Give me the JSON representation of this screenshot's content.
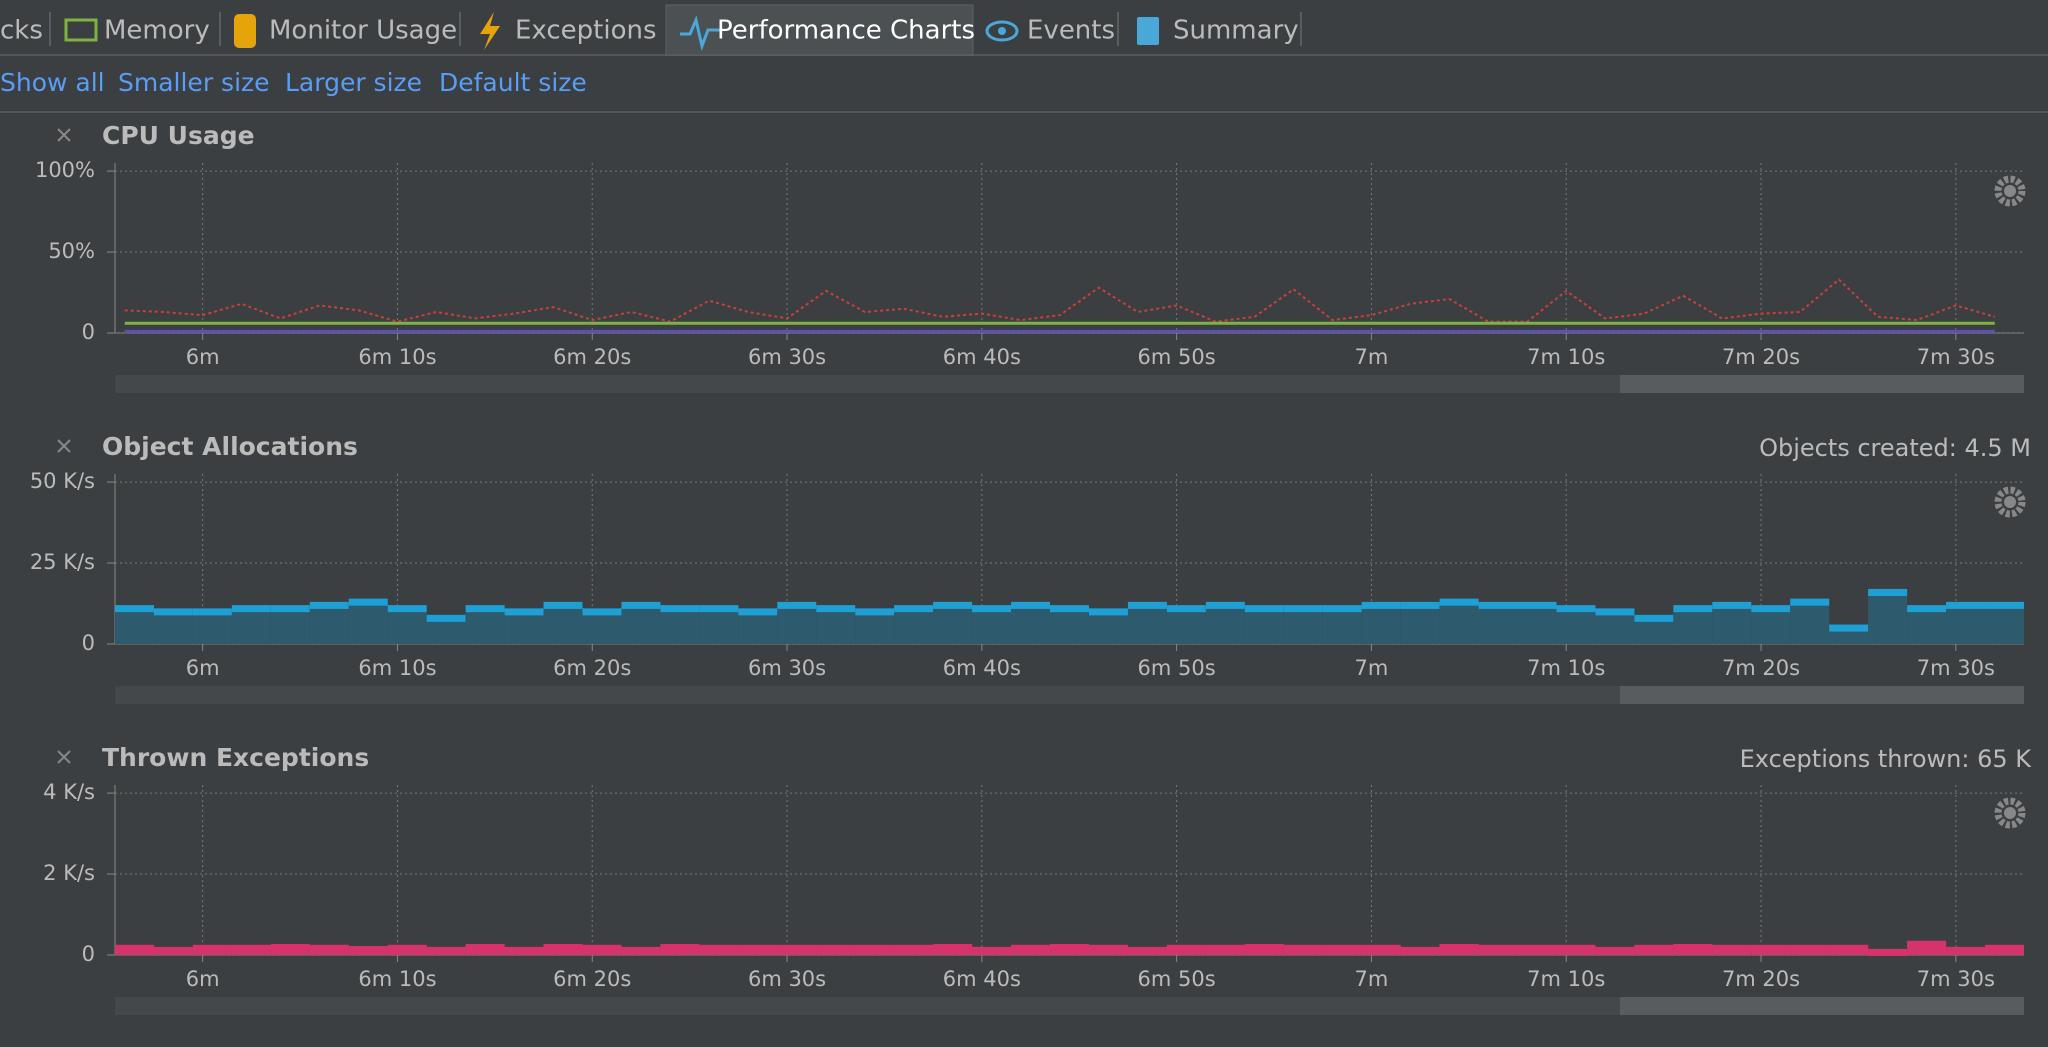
{
  "tabs": [
    "cks",
    "Memory",
    "Monitor Usage",
    "Exceptions",
    "Performance Charts",
    "Events",
    "Summary"
  ],
  "links": [
    "Show all",
    "Smaller size",
    "Larger size",
    "Default size"
  ],
  "chart_data": [
    {
      "type": "line",
      "title": "CPU Usage",
      "x": [
        356,
        358,
        360,
        362,
        364,
        366,
        368,
        370,
        372,
        374,
        376,
        378,
        380,
        382,
        384,
        386,
        388,
        390,
        392,
        394,
        396,
        398,
        400,
        402,
        404,
        406,
        408,
        410,
        412,
        414,
        416,
        418,
        420,
        422,
        424,
        426,
        428,
        430,
        432,
        434,
        436,
        438,
        440,
        442,
        444,
        446,
        448,
        450,
        452
      ],
      "series": [
        {
          "color": "#c9403a",
          "style": "dotted",
          "values": [
            14,
            13,
            11,
            18,
            9,
            17,
            14,
            7,
            13,
            9,
            12,
            16,
            8,
            13,
            7,
            20,
            13,
            9,
            26,
            13,
            15,
            10,
            12,
            8,
            11,
            28,
            13,
            17,
            7,
            10,
            27,
            8,
            11,
            18,
            21,
            7,
            7,
            26,
            9,
            12,
            23,
            9,
            12,
            13,
            33,
            10,
            8,
            17,
            10
          ]
        },
        {
          "color": "#7cb342",
          "style": "solid",
          "values": [
            6,
            6,
            6,
            6,
            6,
            6,
            6,
            6,
            6,
            6,
            6,
            6,
            6,
            6,
            6,
            6,
            6,
            6,
            6,
            6,
            6,
            6,
            6,
            6,
            6,
            6,
            6,
            6,
            6,
            6,
            6,
            6,
            6,
            6,
            6,
            6,
            6,
            6,
            6,
            6,
            6,
            6,
            6,
            6,
            6,
            6,
            6,
            6,
            6
          ]
        },
        {
          "color": "#5b4fb5",
          "style": "solid",
          "values": [
            1,
            1,
            1,
            1,
            1,
            1,
            1,
            1,
            1,
            1,
            1,
            1,
            1,
            1,
            1,
            1,
            1,
            1,
            1,
            1,
            1,
            1,
            1,
            1,
            1,
            1,
            1,
            1,
            1,
            1,
            1,
            1,
            1,
            1,
            1,
            1,
            1,
            1,
            1,
            1,
            1,
            1,
            1,
            1,
            1,
            1,
            1,
            1,
            1
          ]
        }
      ],
      "xlim": [
        355.5,
        453.5
      ],
      "xticks": [
        {
          "value": 360,
          "label": "6m"
        },
        {
          "value": 370,
          "label": "6m 10s"
        },
        {
          "value": 380,
          "label": "6m 20s"
        },
        {
          "value": 390,
          "label": "6m 30s"
        },
        {
          "value": 400,
          "label": "6m 40s"
        },
        {
          "value": 410,
          "label": "6m 50s"
        },
        {
          "value": 420,
          "label": "7m"
        },
        {
          "value": 430,
          "label": "7m 10s"
        },
        {
          "value": 440,
          "label": "7m 20s"
        },
        {
          "value": 450,
          "label": "7m 30s"
        }
      ],
      "ylim": [
        0,
        105
      ],
      "yticks": [
        0,
        {
          "value": 50,
          "label": "50%"
        },
        {
          "value": 100,
          "label": "100%"
        }
      ],
      "grid": true
    },
    {
      "type": "histogram",
      "title": "Object Allocations",
      "annotation": "Objects created: 4.5 M",
      "bins": [
        355.5,
        357.5,
        359.5,
        361.5,
        363.5,
        365.5,
        367.5,
        369.5,
        371.5,
        373.5,
        375.5,
        377.5,
        379.5,
        381.5,
        383.5,
        385.5,
        387.5,
        389.5,
        391.5,
        393.5,
        395.5,
        397.5,
        399.5,
        401.5,
        403.5,
        405.5,
        407.5,
        409.5,
        411.5,
        413.5,
        415.5,
        417.5,
        419.5,
        421.5,
        423.5,
        425.5,
        427.5,
        429.5,
        431.5,
        433.5,
        435.5,
        437.5,
        439.5,
        441.5,
        443.5,
        445.5,
        447.5,
        449.5,
        451.5,
        453.5
      ],
      "values": [
        12,
        11,
        11,
        12,
        12,
        13,
        14,
        12,
        9,
        12,
        11,
        13,
        11,
        13,
        12,
        12,
        11,
        13,
        12,
        11,
        12,
        13,
        12,
        13,
        12,
        11,
        13,
        12,
        13,
        12,
        12,
        12,
        13,
        13,
        14,
        13,
        13,
        12,
        11,
        9,
        12,
        13,
        12,
        14,
        6,
        17,
        12,
        13,
        13
      ],
      "color": "#1fa0d5",
      "fill": "#2e5a6e",
      "xlim": [
        355.5,
        453.5
      ],
      "xticks": [
        {
          "value": 360,
          "label": "6m"
        },
        {
          "value": 370,
          "label": "6m 10s"
        },
        {
          "value": 380,
          "label": "6m 20s"
        },
        {
          "value": 390,
          "label": "6m 30s"
        },
        {
          "value": 400,
          "label": "6m 40s"
        },
        {
          "value": 410,
          "label": "6m 50s"
        },
        {
          "value": 420,
          "label": "7m"
        },
        {
          "value": 430,
          "label": "7m 10s"
        },
        {
          "value": 440,
          "label": "7m 20s"
        },
        {
          "value": 450,
          "label": "7m 30s"
        }
      ],
      "ylim": [
        0,
        52.5
      ],
      "yticks": [
        0,
        {
          "value": 25,
          "label": "25 K/s"
        },
        {
          "value": 50,
          "label": "50 K/s"
        }
      ],
      "grid": true
    },
    {
      "type": "histogram",
      "title": "Thrown Exceptions",
      "annotation": "Exceptions thrown: 65 K",
      "bins": [
        355.5,
        357.5,
        359.5,
        361.5,
        363.5,
        365.5,
        367.5,
        369.5,
        371.5,
        373.5,
        375.5,
        377.5,
        379.5,
        381.5,
        383.5,
        385.5,
        387.5,
        389.5,
        391.5,
        393.5,
        395.5,
        397.5,
        399.5,
        401.5,
        403.5,
        405.5,
        407.5,
        409.5,
        411.5,
        413.5,
        415.5,
        417.5,
        419.5,
        421.5,
        423.5,
        425.5,
        427.5,
        429.5,
        431.5,
        433.5,
        435.5,
        437.5,
        439.5,
        441.5,
        443.5,
        445.5,
        447.5,
        449.5,
        451.5,
        453.5
      ],
      "values": [
        0.25,
        0.2,
        0.25,
        0.25,
        0.27,
        0.25,
        0.22,
        0.25,
        0.2,
        0.27,
        0.2,
        0.27,
        0.25,
        0.2,
        0.27,
        0.25,
        0.25,
        0.25,
        0.25,
        0.25,
        0.25,
        0.27,
        0.2,
        0.25,
        0.27,
        0.25,
        0.2,
        0.25,
        0.25,
        0.27,
        0.25,
        0.25,
        0.25,
        0.2,
        0.27,
        0.25,
        0.25,
        0.25,
        0.2,
        0.25,
        0.27,
        0.25,
        0.25,
        0.25,
        0.25,
        0.15,
        0.35,
        0.2,
        0.25
      ],
      "color": "#d6336c",
      "fill": "#d6336c",
      "xlim": [
        355.5,
        453.5
      ],
      "xticks": [
        {
          "value": 360,
          "label": "6m"
        },
        {
          "value": 370,
          "label": "6m 10s"
        },
        {
          "value": 380,
          "label": "6m 20s"
        },
        {
          "value": 390,
          "label": "6m 30s"
        },
        {
          "value": 400,
          "label": "6m 40s"
        },
        {
          "value": 410,
          "label": "6m 50s"
        },
        {
          "value": 420,
          "label": "7m"
        },
        {
          "value": 430,
          "label": "7m 10s"
        },
        {
          "value": 440,
          "label": "7m 20s"
        },
        {
          "value": 450,
          "label": "7m 30s"
        }
      ],
      "ylim": [
        0,
        4.2
      ],
      "yticks": [
        0,
        {
          "value": 2,
          "label": "2 K/s"
        },
        {
          "value": 4,
          "label": "4 K/s"
        }
      ],
      "grid": true
    }
  ]
}
